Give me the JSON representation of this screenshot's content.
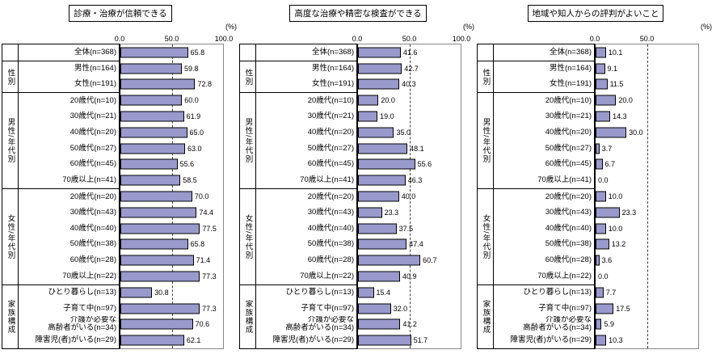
{
  "chart_data": [
    {
      "type": "bar",
      "title": "診療・治療が信頼できる",
      "unit": "(%)",
      "xlim": [
        0,
        100
      ],
      "axis_ticks": [
        "0.0",
        "50.0",
        "100.0"
      ],
      "reference_line": 50,
      "bar_color": "#9999CC",
      "groups": [
        {
          "label": "",
          "rows": [
            {
              "label": "全体(n=368)",
              "value": 65.8
            }
          ]
        },
        {
          "label": "性別",
          "rows": [
            {
              "label": "男性(n=164)",
              "value": 59.8
            },
            {
              "label": "女性(n=191)",
              "value": 72.8
            }
          ]
        },
        {
          "label": "男性/年代別",
          "rows": [
            {
              "label": "20歳代(n=10)",
              "value": 60.0
            },
            {
              "label": "30歳代(n=21)",
              "value": 61.9
            },
            {
              "label": "40歳代(n=20)",
              "value": 65.0
            },
            {
              "label": "50歳代(n=27)",
              "value": 63.0
            },
            {
              "label": "60歳代(n=45)",
              "value": 55.6
            },
            {
              "label": "70歳以上(n=41)",
              "value": 58.5
            }
          ]
        },
        {
          "label": "女性/年代別",
          "rows": [
            {
              "label": "20歳代(n=20)",
              "value": 70.0
            },
            {
              "label": "30歳代(n=43)",
              "value": 74.4
            },
            {
              "label": "40歳代(n=40)",
              "value": 77.5
            },
            {
              "label": "50歳代(n=38)",
              "value": 65.8
            },
            {
              "label": "60歳代(n=28)",
              "value": 71.4
            },
            {
              "label": "70歳以上(n=22)",
              "value": 77.3
            }
          ]
        },
        {
          "label": "家族構成",
          "rows": [
            {
              "label": "ひとり暮らし(n=13)",
              "value": 30.8
            },
            {
              "label": "子育て中(n=97)",
              "value": 77.3
            },
            {
              "label": "介護が必要な\n高齢者がいる(n=34)",
              "value": 70.6
            },
            {
              "label": "障害児(者)がいる(n=29)",
              "value": 62.1
            }
          ]
        }
      ]
    },
    {
      "type": "bar",
      "title": "高度な治療や精密な検査ができる",
      "unit": "(%)",
      "xlim": [
        0,
        100
      ],
      "axis_ticks": [
        "0.0",
        "50.0",
        "100.0"
      ],
      "reference_line": 50,
      "bar_color": "#9999CC",
      "groups": [
        {
          "label": "",
          "rows": [
            {
              "label": "全体(n=368)",
              "value": 41.6
            }
          ]
        },
        {
          "label": "性別",
          "rows": [
            {
              "label": "男性(n=164)",
              "value": 42.7
            },
            {
              "label": "女性(n=191)",
              "value": 40.3
            }
          ]
        },
        {
          "label": "男性/年代別",
          "rows": [
            {
              "label": "20歳代(n=10)",
              "value": 20.0
            },
            {
              "label": "30歳代(n=21)",
              "value": 19.0
            },
            {
              "label": "40歳代(n=20)",
              "value": 35.0
            },
            {
              "label": "50歳代(n=27)",
              "value": 48.1
            },
            {
              "label": "60歳代(n=45)",
              "value": 55.6
            },
            {
              "label": "70歳以上(n=41)",
              "value": 46.3
            }
          ]
        },
        {
          "label": "女性/年代別",
          "rows": [
            {
              "label": "20歳代(n=20)",
              "value": 40.0
            },
            {
              "label": "30歳代(n=43)",
              "value": 23.3
            },
            {
              "label": "40歳代(n=40)",
              "value": 37.5
            },
            {
              "label": "50歳代(n=38)",
              "value": 47.4
            },
            {
              "label": "60歳代(n=28)",
              "value": 60.7
            },
            {
              "label": "70歳以上(n=22)",
              "value": 40.9
            }
          ]
        },
        {
          "label": "家族構成",
          "rows": [
            {
              "label": "ひとり暮らし(n=13)",
              "value": 15.4
            },
            {
              "label": "子育て中(n=97)",
              "value": 32.0
            },
            {
              "label": "介護が必要な\n高齢者がいる(n=34)",
              "value": 41.2
            },
            {
              "label": "障害児(者)がいる(n=29)",
              "value": 51.7
            }
          ]
        }
      ]
    },
    {
      "type": "bar",
      "title": "地域や知人からの評判がよいこと",
      "unit": "(%)",
      "xlim": [
        0,
        100
      ],
      "axis_ticks": [
        "0.0",
        "50.0"
      ],
      "reference_line": 50,
      "bar_color": "#9999CC",
      "groups": [
        {
          "label": "",
          "rows": [
            {
              "label": "全体(n=368)",
              "value": 10.1
            }
          ]
        },
        {
          "label": "性別",
          "rows": [
            {
              "label": "男性(n=164)",
              "value": 9.1
            },
            {
              "label": "女性(n=191)",
              "value": 11.5
            }
          ]
        },
        {
          "label": "男性/年代別",
          "rows": [
            {
              "label": "20歳代(n=10)",
              "value": 20.0
            },
            {
              "label": "30歳代(n=21)",
              "value": 14.3
            },
            {
              "label": "40歳代(n=20)",
              "value": 30.0
            },
            {
              "label": "50歳代(n=27)",
              "value": 3.7
            },
            {
              "label": "60歳代(n=45)",
              "value": 6.7
            },
            {
              "label": "70歳以上(n=41)",
              "value": 0.0
            }
          ]
        },
        {
          "label": "女性/年代別",
          "rows": [
            {
              "label": "20歳代(n=20)",
              "value": 10.0
            },
            {
              "label": "30歳代(n=43)",
              "value": 23.3
            },
            {
              "label": "40歳代(n=40)",
              "value": 10.0
            },
            {
              "label": "50歳代(n=38)",
              "value": 13.2
            },
            {
              "label": "60歳代(n=28)",
              "value": 3.6
            },
            {
              "label": "70歳以上(n=22)",
              "value": 0.0
            }
          ]
        },
        {
          "label": "家族構成",
          "rows": [
            {
              "label": "ひとり暮らし(n=13)",
              "value": 7.7
            },
            {
              "label": "子育て中(n=97)",
              "value": 17.5
            },
            {
              "label": "介護が必要な\n高齢者がいる(n=34)",
              "value": 5.9
            },
            {
              "label": "障害児(者)がいる(n=29)",
              "value": 10.3
            }
          ]
        }
      ]
    }
  ]
}
